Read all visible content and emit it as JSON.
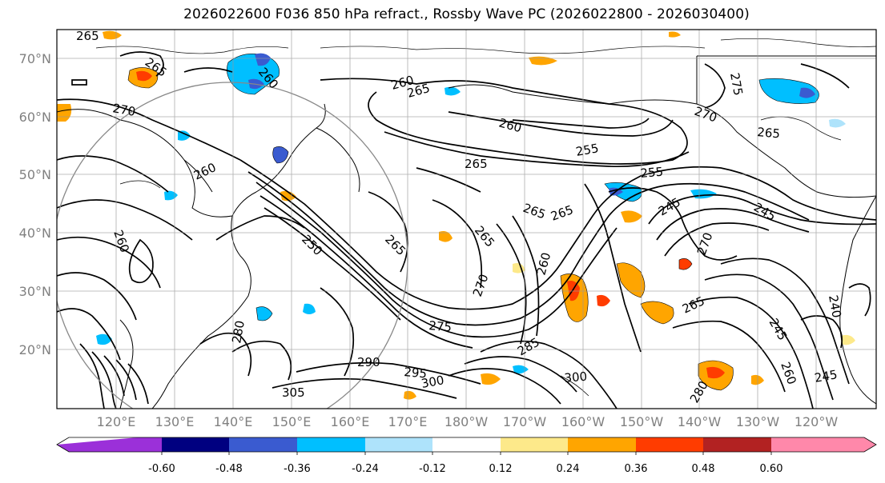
{
  "title": "2026022600 F036 850 hPa refract., Rossby Wave PC (2026022800 - 2026030400)",
  "lat_labels": [
    "70°N",
    "60°N",
    "50°N",
    "40°N",
    "30°N",
    "20°N"
  ],
  "lon_labels": [
    "120°E",
    "130°E",
    "140°E",
    "150°E",
    "160°E",
    "170°E",
    "180°W",
    "170°W",
    "160°W",
    "150°W",
    "140°W",
    "130°W",
    "120°W"
  ],
  "colorbar": {
    "colors": [
      "#9b30d9",
      "#000080",
      "#3a5bd0",
      "#00bfff",
      "#aee3fb",
      "#ffffff",
      "#fde98a",
      "#ffa500",
      "#ff3c00",
      "#b22222",
      "#ff88aa"
    ],
    "tick_labels": [
      "-0.60",
      "-0.48",
      "-0.36",
      "-0.24",
      "-0.12",
      "0.12",
      "0.24",
      "0.36",
      "0.48",
      "0.60"
    ]
  },
  "contour_labels": [
    "265",
    "265",
    "260",
    "260",
    "265",
    "270",
    "260",
    "275",
    "270",
    "265",
    "255",
    "265",
    "260",
    "255",
    "265",
    "265",
    "260",
    "265",
    "265",
    "250",
    "245",
    "245",
    "270",
    "265",
    "260",
    "270",
    "275",
    "280",
    "290",
    "295",
    "300",
    "300",
    "305",
    "240",
    "245",
    "245",
    "280",
    "285",
    "260"
  ]
}
